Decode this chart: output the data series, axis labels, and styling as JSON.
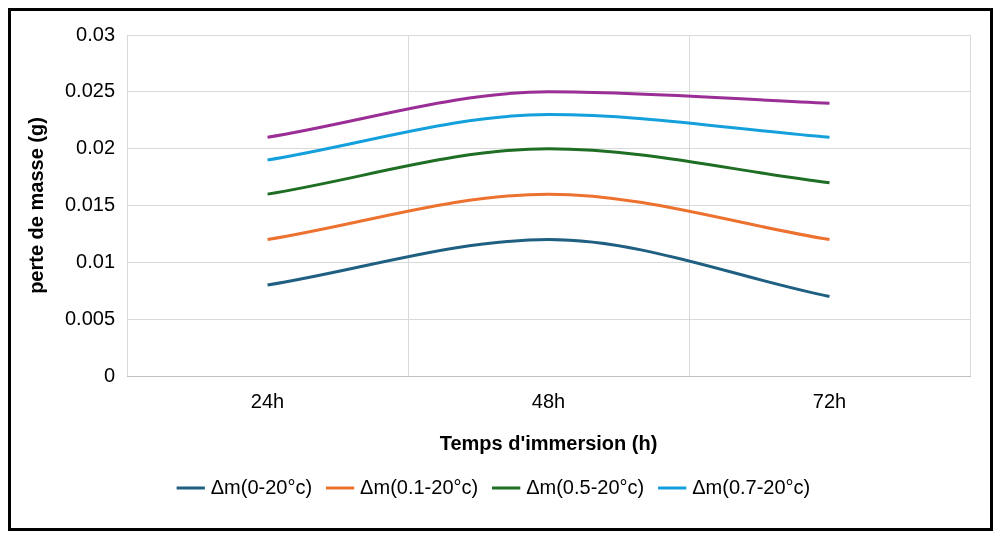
{
  "chart_data": {
    "type": "line",
    "xlabel": "Temps d'immersion (h)",
    "ylabel": "perte de masse (g)",
    "categories": [
      "24h",
      "48h",
      "72h"
    ],
    "series": [
      {
        "name": "Δm(0-20°c)",
        "color": "#1f5f82",
        "values": [
          0.008,
          0.012,
          0.007
        ]
      },
      {
        "name": "Δm(0.1-20°c)",
        "color": "#ed7230",
        "values": [
          0.012,
          0.016,
          0.012
        ]
      },
      {
        "name": "Δm(0.5-20°c)",
        "color": "#1e6e24",
        "values": [
          0.016,
          0.02,
          0.017
        ]
      },
      {
        "name": "Δm(0.7-20°c)",
        "color": "#14a0dc",
        "values": [
          0.019,
          0.023,
          0.021
        ]
      },
      {
        "color": "#9b2d96",
        "values": [
          0.021,
          0.025,
          0.024
        ]
      }
    ],
    "ylim": [
      0,
      0.03
    ],
    "yticks": [
      0,
      0.005,
      0.01,
      0.015,
      0.02,
      0.025,
      0.03
    ],
    "grid": true,
    "legend": "bottom",
    "marker": "none",
    "line_style": "solid"
  }
}
